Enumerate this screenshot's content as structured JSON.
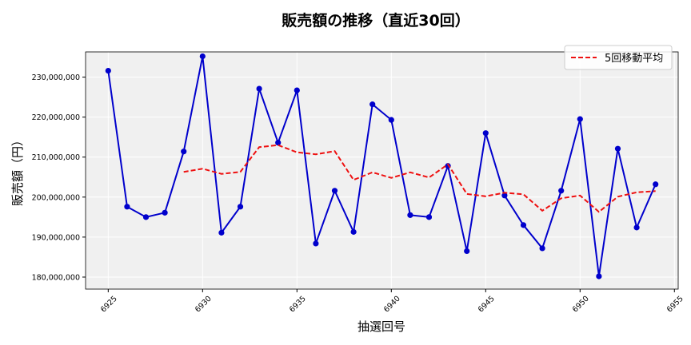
{
  "chart_data": {
    "type": "line",
    "title": "販売額の推移（直近30回）",
    "xlabel": "抽選回号",
    "ylabel": "販売額（円）",
    "xlim": [
      6923.8,
      6955.2
    ],
    "ylim": [
      177000000,
      236300000
    ],
    "x_ticks": [
      6925,
      6930,
      6935,
      6940,
      6945,
      6950,
      6955
    ],
    "y_ticks": [
      180000000,
      190000000,
      200000000,
      210000000,
      220000000,
      230000000
    ],
    "y_tick_labels": [
      "180,000,000",
      "190,000,000",
      "200,000,000",
      "210,000,000",
      "220,000,000",
      "230,000,000"
    ],
    "grid": true,
    "legend_position": "top-right",
    "x": [
      6925,
      6926,
      6927,
      6928,
      6929,
      6930,
      6931,
      6932,
      6933,
      6934,
      6935,
      6936,
      6937,
      6938,
      6939,
      6940,
      6941,
      6942,
      6943,
      6944,
      6945,
      6946,
      6947,
      6948,
      6949,
      6950,
      6951,
      6952,
      6953,
      6954
    ],
    "series": [
      {
        "name": "",
        "color": "#0000cc",
        "style": "solid",
        "markers": true,
        "values": [
          231600000,
          197600000,
          195000000,
          196100000,
          211400000,
          235200000,
          191100000,
          197600000,
          227100000,
          213600000,
          226700000,
          188400000,
          201600000,
          191300000,
          223200000,
          219300000,
          195500000,
          195000000,
          207800000,
          186500000,
          216000000,
          200400000,
          193000000,
          187200000,
          201600000,
          219500000,
          180200000,
          212100000,
          192400000,
          203200000
        ]
      },
      {
        "name": "5回移動平均",
        "color": "#ee1111",
        "style": "dashed",
        "markers": false,
        "values": [
          null,
          null,
          null,
          null,
          206300000,
          207100000,
          205800000,
          206300000,
          212500000,
          213000000,
          211200000,
          210700000,
          211500000,
          204300000,
          206200000,
          204800000,
          206200000,
          204900000,
          208200000,
          200800000,
          200200000,
          201100000,
          200700000,
          196600000,
          199700000,
          200400000,
          196300000,
          200100000,
          201200000,
          201500000
        ]
      }
    ]
  }
}
